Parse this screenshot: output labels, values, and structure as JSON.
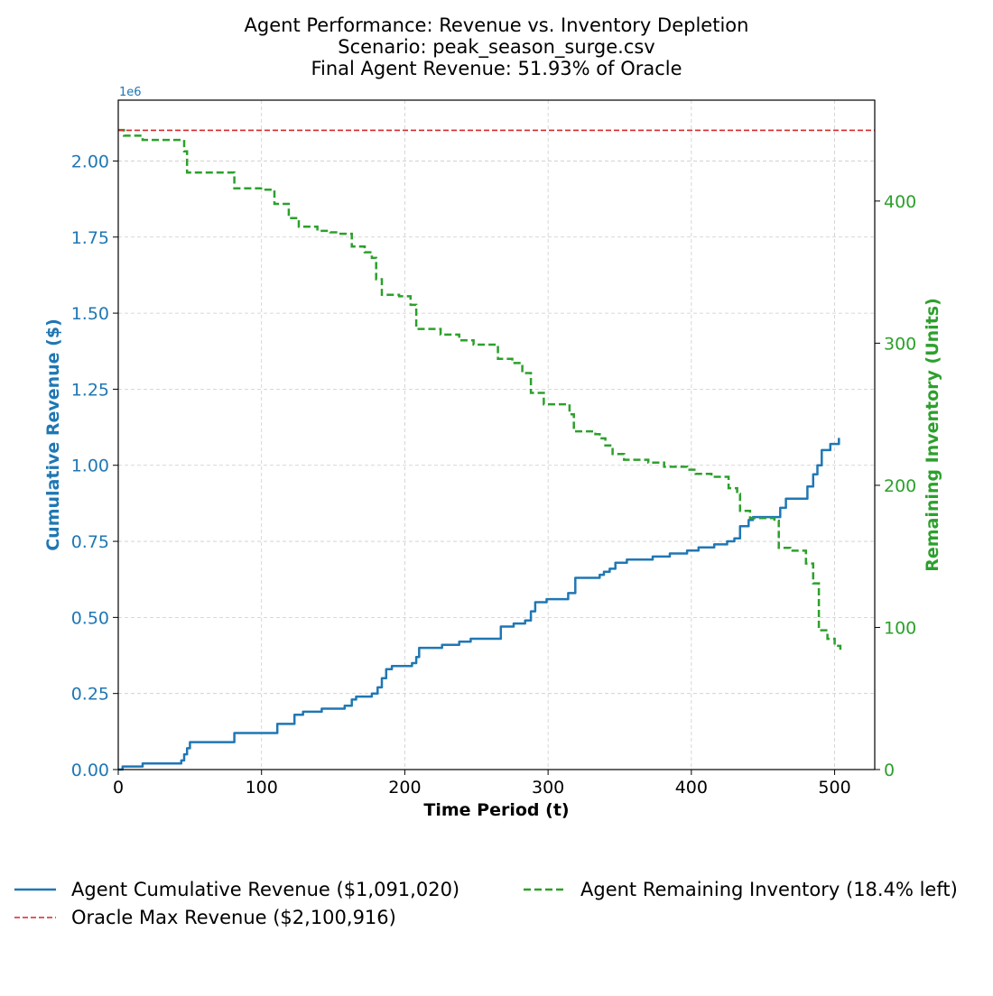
{
  "chart_data": {
    "type": "line",
    "title_lines": [
      "Agent Performance: Revenue vs. Inventory Depletion",
      "Scenario: peak_season_surge.csv",
      "Final Agent Revenue: 51.93% of Oracle"
    ],
    "xlabel": "Time Period (t)",
    "ylabel_left": "Cumulative Revenue ($)",
    "ylabel_right": "Remaining Inventory (Units)",
    "left_axis_offset": "1e6",
    "xlim": [
      0,
      528
    ],
    "ylim_left": [
      0,
      2.2
    ],
    "ylim_right": [
      0,
      471
    ],
    "x_ticks": [
      0,
      100,
      200,
      300,
      400,
      500
    ],
    "x_tick_labels": [
      "0",
      "100",
      "200",
      "300",
      "400",
      "500"
    ],
    "y_left_ticks": [
      0,
      0.25,
      0.5,
      0.75,
      1.0,
      1.25,
      1.5,
      1.75,
      2.0
    ],
    "y_left_tick_labels": [
      "0.00",
      "0.25",
      "0.50",
      "0.75",
      "1.00",
      "1.25",
      "1.50",
      "1.75",
      "2.00"
    ],
    "y_right_ticks": [
      0,
      100,
      200,
      300,
      400
    ],
    "y_right_tick_labels": [
      "0",
      "100",
      "200",
      "300",
      "400"
    ],
    "grid": true,
    "legend_position": "bottom",
    "colors": {
      "revenue": "#1f77b4",
      "oracle": "#d62728",
      "inventory": "#2ca02c"
    },
    "series": [
      {
        "name": "Agent Cumulative Revenue ($1,091,020)",
        "axis": "left",
        "style": "solid-step",
        "color": "#1f77b4",
        "points": [
          [
            0,
            0
          ],
          [
            3,
            0.01
          ],
          [
            17,
            0.02
          ],
          [
            44,
            0.03
          ],
          [
            46,
            0.05
          ],
          [
            48,
            0.07
          ],
          [
            50,
            0.09
          ],
          [
            81,
            0.12
          ],
          [
            102,
            0.12
          ],
          [
            111,
            0.15
          ],
          [
            123,
            0.18
          ],
          [
            129,
            0.19
          ],
          [
            142,
            0.2
          ],
          [
            158,
            0.21
          ],
          [
            163,
            0.23
          ],
          [
            166,
            0.24
          ],
          [
            171,
            0.24
          ],
          [
            177,
            0.25
          ],
          [
            181,
            0.27
          ],
          [
            184,
            0.3
          ],
          [
            187,
            0.33
          ],
          [
            191,
            0.34
          ],
          [
            203,
            0.34
          ],
          [
            205,
            0.35
          ],
          [
            208,
            0.37
          ],
          [
            210,
            0.4
          ],
          [
            226,
            0.41
          ],
          [
            238,
            0.42
          ],
          [
            246,
            0.43
          ],
          [
            267,
            0.47
          ],
          [
            276,
            0.48
          ],
          [
            284,
            0.49
          ],
          [
            288,
            0.52
          ],
          [
            291,
            0.55
          ],
          [
            299,
            0.56
          ],
          [
            314,
            0.58
          ],
          [
            319,
            0.63
          ],
          [
            333,
            0.63
          ],
          [
            336,
            0.64
          ],
          [
            339,
            0.65
          ],
          [
            343,
            0.66
          ],
          [
            347,
            0.68
          ],
          [
            355,
            0.69
          ],
          [
            373,
            0.7
          ],
          [
            385,
            0.71
          ],
          [
            397,
            0.72
          ],
          [
            405,
            0.73
          ],
          [
            416,
            0.74
          ],
          [
            425,
            0.75
          ],
          [
            430,
            0.76
          ],
          [
            434,
            0.8
          ],
          [
            440,
            0.82
          ],
          [
            443,
            0.83
          ],
          [
            458,
            0.83
          ],
          [
            462,
            0.86
          ],
          [
            466,
            0.89
          ],
          [
            478,
            0.89
          ],
          [
            481,
            0.93
          ],
          [
            485,
            0.97
          ],
          [
            488,
            1.0
          ],
          [
            491,
            1.05
          ],
          [
            497,
            1.07
          ],
          [
            502,
            1.07
          ],
          [
            503,
            1.09
          ]
        ]
      },
      {
        "name": "Agent Remaining Inventory (18.4% left)",
        "axis": "right",
        "style": "dashed-step",
        "color": "#2ca02c",
        "points": [
          [
            0,
            450
          ],
          [
            4,
            446
          ],
          [
            17,
            443
          ],
          [
            44,
            443
          ],
          [
            46,
            435
          ],
          [
            48,
            420
          ],
          [
            81,
            409
          ],
          [
            102,
            408
          ],
          [
            109,
            398
          ],
          [
            119,
            388
          ],
          [
            126,
            382
          ],
          [
            139,
            379
          ],
          [
            148,
            378
          ],
          [
            153,
            377
          ],
          [
            163,
            368
          ],
          [
            172,
            364
          ],
          [
            177,
            360
          ],
          [
            180,
            345
          ],
          [
            184,
            334
          ],
          [
            196,
            333
          ],
          [
            204,
            327
          ],
          [
            208,
            310
          ],
          [
            225,
            306
          ],
          [
            238,
            302
          ],
          [
            248,
            299
          ],
          [
            265,
            289
          ],
          [
            275,
            286
          ],
          [
            282,
            279
          ],
          [
            288,
            265
          ],
          [
            297,
            257
          ],
          [
            315,
            250
          ],
          [
            318,
            238
          ],
          [
            333,
            236
          ],
          [
            336,
            233
          ],
          [
            340,
            228
          ],
          [
            345,
            222
          ],
          [
            353,
            218
          ],
          [
            370,
            216
          ],
          [
            381,
            213
          ],
          [
            397,
            211
          ],
          [
            403,
            208
          ],
          [
            414,
            206
          ],
          [
            426,
            198
          ],
          [
            432,
            194
          ],
          [
            434,
            182
          ],
          [
            441,
            177
          ],
          [
            458,
            175
          ],
          [
            461,
            156
          ],
          [
            469,
            154
          ],
          [
            480,
            145
          ],
          [
            485,
            131
          ],
          [
            489,
            98
          ],
          [
            495,
            92
          ],
          [
            500,
            87
          ],
          [
            504,
            84
          ]
        ]
      },
      {
        "name": "Oracle Max Revenue ($2,100,916)",
        "axis": "left",
        "style": "dashed-horizontal",
        "color": "#d62728",
        "value": 2.100916
      }
    ],
    "legend": [
      {
        "label": "Agent Cumulative Revenue ($1,091,020)",
        "style": "solid",
        "color": "#1f77b4"
      },
      {
        "label": "Agent Remaining Inventory (18.4% left)",
        "style": "dashed",
        "color": "#2ca02c"
      },
      {
        "label": "Oracle Max Revenue ($2,100,916)",
        "style": "dashed-fine",
        "color": "#d62728"
      }
    ]
  }
}
